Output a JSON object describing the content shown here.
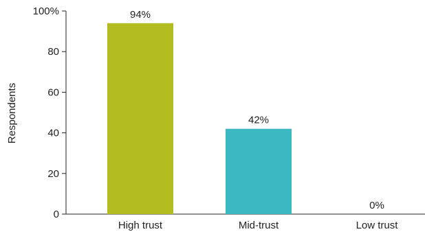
{
  "chart_data": {
    "type": "bar",
    "categories": [
      "High trust",
      "Mid-trust",
      "Low trust"
    ],
    "values": [
      94,
      42,
      0
    ],
    "data_labels": [
      "94%",
      "42%",
      "0%"
    ],
    "bar_colors": [
      "#b3bd22",
      "#3cb8c3",
      "#b3bd22"
    ],
    "ylabel": "Respondents",
    "xlabel": "",
    "title": "",
    "ylim": [
      0,
      100
    ],
    "yticks": [
      0,
      20,
      40,
      60,
      80,
      100
    ],
    "ytick_labels": [
      "0",
      "20",
      "40",
      "60",
      "80",
      "100%"
    ],
    "grid": false,
    "legend": "none"
  }
}
